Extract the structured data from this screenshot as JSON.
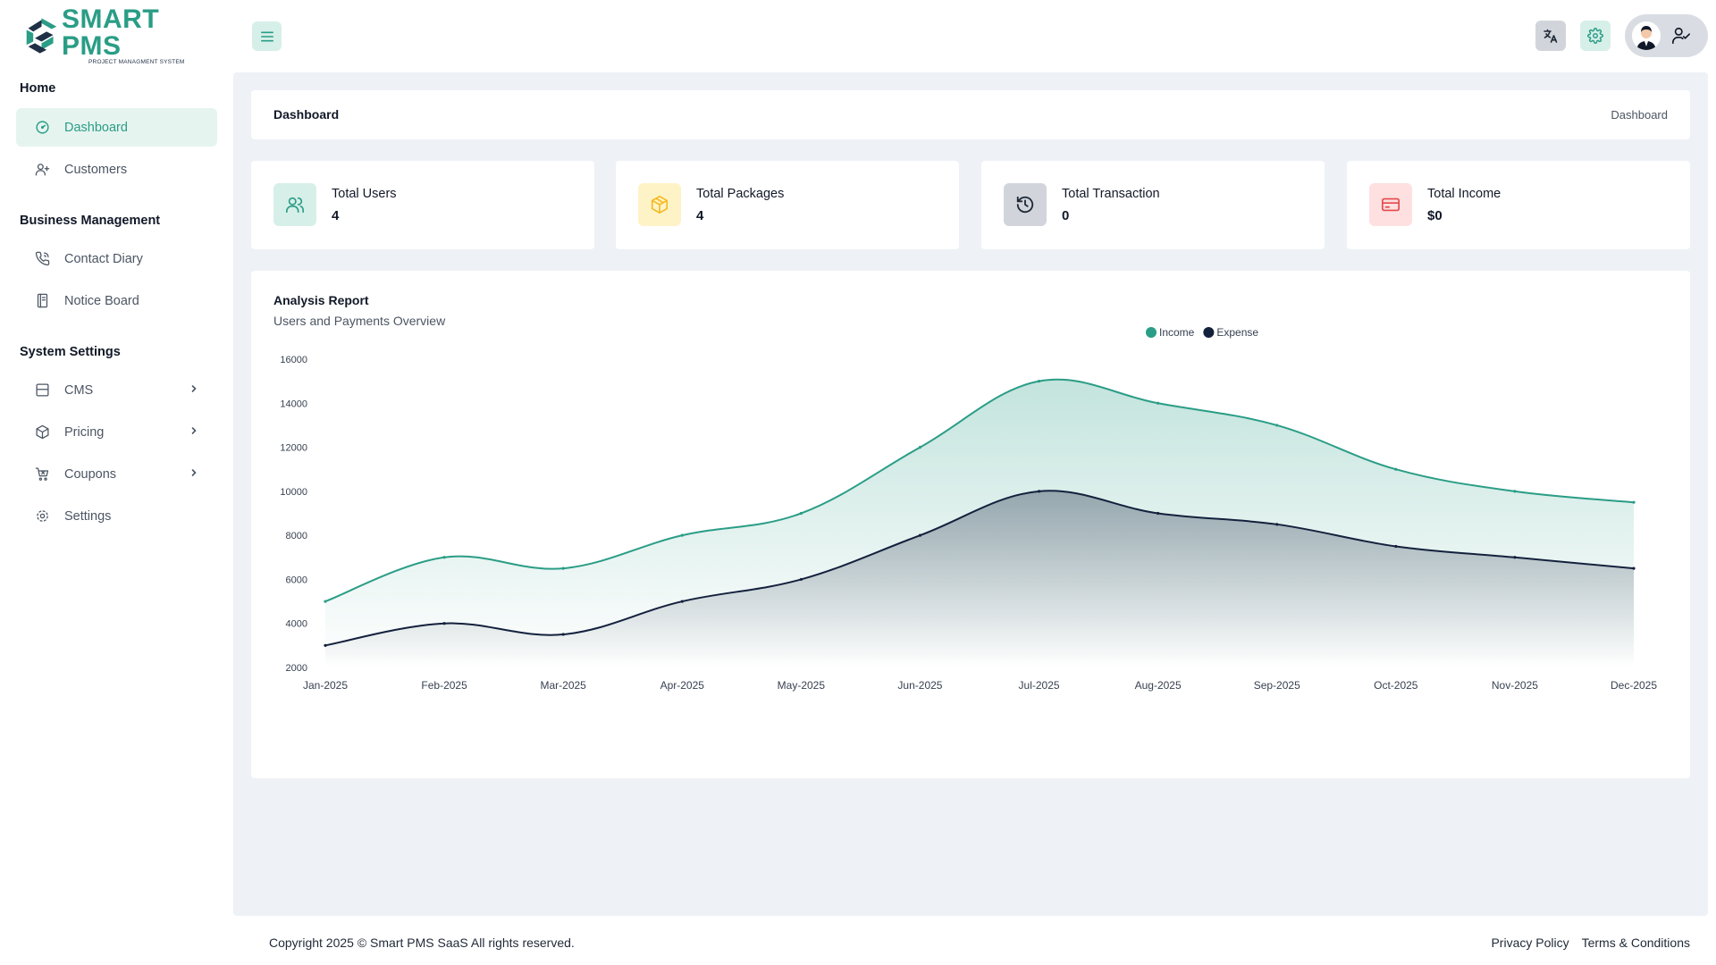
{
  "brand": {
    "name": "SMART PMS",
    "tagline": "PROJECT MANAGMENT SYSTEM",
    "primary_color": "#2a9d86",
    "dark_color": "#14213d"
  },
  "topbar": {
    "menu_icon": "hamburger-icon",
    "translate_icon": "translate-icon",
    "settings_icon": "gear-icon",
    "profile_icon": "user-check-icon"
  },
  "sidebar": {
    "sections": [
      {
        "title": "Home",
        "items": [
          {
            "label": "Dashboard",
            "icon": "gauge-icon",
            "active": true
          },
          {
            "label": "Customers",
            "icon": "user-plus-icon"
          }
        ]
      },
      {
        "title": "Business Management",
        "items": [
          {
            "label": "Contact Diary",
            "icon": "phone-icon"
          },
          {
            "label": "Notice Board",
            "icon": "notebook-icon"
          }
        ]
      },
      {
        "title": "System Settings",
        "items": [
          {
            "label": "CMS",
            "icon": "layout-icon",
            "has_submenu": true
          },
          {
            "label": "Pricing",
            "icon": "box-icon",
            "has_submenu": true
          },
          {
            "label": "Coupons",
            "icon": "cart-icon",
            "has_submenu": true
          },
          {
            "label": "Settings",
            "icon": "gear-icon"
          }
        ]
      }
    ]
  },
  "header": {
    "title": "Dashboard",
    "breadcrumb": "Dashboard"
  },
  "stats": [
    {
      "label": "Total Users",
      "value": "4",
      "icon": "users-icon",
      "bg": "#d7efe9",
      "fg": "#2a9d86"
    },
    {
      "label": "Total Packages",
      "value": "4",
      "icon": "package-icon",
      "bg": "#fef3c7",
      "fg": "#f5b921"
    },
    {
      "label": "Total Transaction",
      "value": "0",
      "icon": "history-icon",
      "bg": "#d1d5db",
      "fg": "#1f2937"
    },
    {
      "label": "Total Income",
      "value": "$0",
      "icon": "credit-card-icon",
      "bg": "#fde0df",
      "fg": "#e5484d"
    }
  ],
  "report": {
    "title": "Analysis Report",
    "subtitle": "Users and Payments Overview"
  },
  "chart_data": {
    "type": "area",
    "categories": [
      "Jan-2025",
      "Feb-2025",
      "Mar-2025",
      "Apr-2025",
      "May-2025",
      "Jun-2025",
      "Jul-2025",
      "Aug-2025",
      "Sep-2025",
      "Oct-2025",
      "Nov-2025",
      "Dec-2025"
    ],
    "series": [
      {
        "name": "Income",
        "color": "#2a9d86",
        "values": [
          5000,
          7000,
          6500,
          8000,
          9000,
          12000,
          15000,
          14000,
          13000,
          11000,
          10000,
          9500
        ]
      },
      {
        "name": "Expense",
        "color": "#14213d",
        "values": [
          3000,
          4000,
          3500,
          5000,
          6000,
          8000,
          10000,
          9000,
          8500,
          7500,
          7000,
          6500
        ]
      }
    ],
    "yticks": [
      2000,
      4000,
      6000,
      8000,
      10000,
      12000,
      14000,
      16000
    ],
    "ylim": [
      2000,
      16000
    ],
    "legend_position": "top-center",
    "grid": false
  },
  "footer": {
    "copyright": "Copyright 2025 © Smart PMS SaaS All rights reserved.",
    "links": [
      "Privacy Policy",
      "Terms & Conditions"
    ]
  }
}
